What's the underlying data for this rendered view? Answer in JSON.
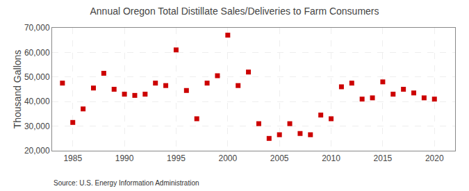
{
  "chart_data": {
    "type": "scatter",
    "title": "Annual Oregon Total Distillate Sales/Deliveries to Farm Consumers",
    "ylabel": "Thousand Gallons",
    "annotations": [
      "Source: U.S. Energy Information Administration"
    ],
    "x": [
      1984,
      1985,
      1986,
      1987,
      1988,
      1989,
      1990,
      1991,
      1992,
      1993,
      1994,
      1995,
      1996,
      1997,
      1998,
      1999,
      2000,
      2001,
      2002,
      2003,
      2004,
      2005,
      2006,
      2007,
      2008,
      2009,
      2010,
      2011,
      2012,
      2013,
      2014,
      2015,
      2016,
      2017,
      2018,
      2019,
      2020
    ],
    "values": [
      47500,
      31500,
      37000,
      45500,
      51500,
      45000,
      43000,
      42500,
      43000,
      47500,
      46500,
      61000,
      44500,
      33000,
      47500,
      50500,
      67000,
      46500,
      52000,
      31000,
      25000,
      26500,
      31000,
      27000,
      26500,
      34500,
      33000,
      46000,
      47500,
      41000,
      41500,
      48000,
      43000,
      45000,
      43500,
      41500,
      41000
    ],
    "color": "#cc0000",
    "marker": "square",
    "xlim": [
      1983,
      2022
    ],
    "ylim": [
      20000,
      70000
    ],
    "xticks": [
      1985,
      1990,
      1995,
      2000,
      2005,
      2010,
      2015,
      2020
    ],
    "yticks": [
      {
        "value": 20000,
        "label": "20,000"
      },
      {
        "value": 30000,
        "label": "30,000"
      },
      {
        "value": 40000,
        "label": "40,000"
      },
      {
        "value": 50000,
        "label": "50,000"
      },
      {
        "value": 60000,
        "label": "60,000"
      },
      {
        "value": 70000,
        "label": "70,000"
      }
    ],
    "grid": true
  }
}
